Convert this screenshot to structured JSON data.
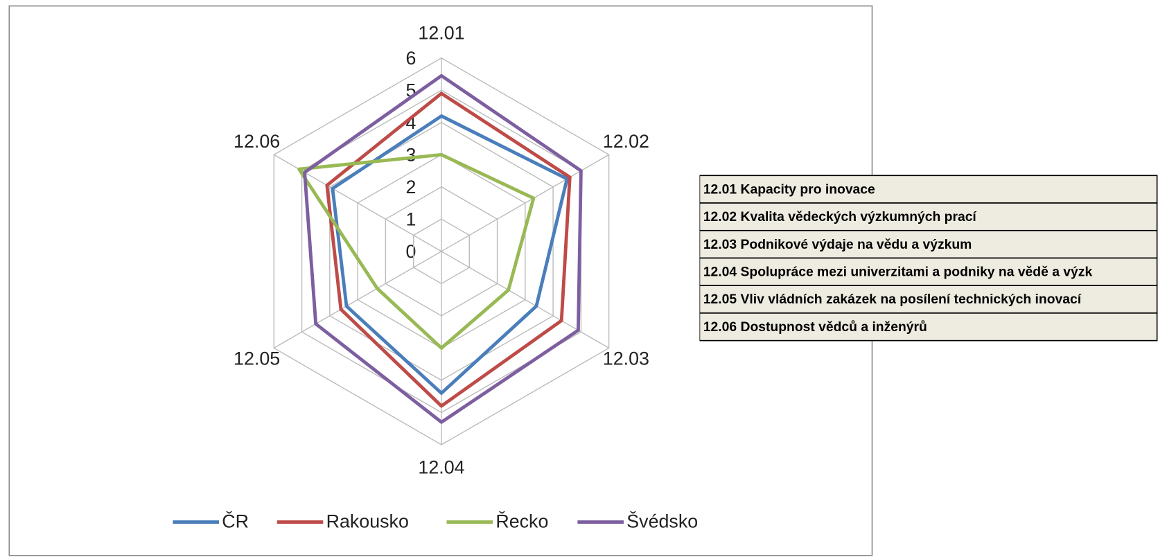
{
  "chart_data": {
    "type": "radar",
    "categories": [
      "12.01",
      "12.02",
      "12.03",
      "12.04",
      "12.05",
      "12.06"
    ],
    "series": [
      {
        "name": "ČR",
        "color": "#4a7ebb",
        "values": [
          4.2,
          4.5,
          3.4,
          4.4,
          3.4,
          3.9
        ]
      },
      {
        "name": "Rakousko",
        "color": "#be4b48",
        "values": [
          4.9,
          4.6,
          4.3,
          4.8,
          3.6,
          4.1
        ]
      },
      {
        "name": "Řecko",
        "color": "#98b954",
        "values": [
          3.0,
          3.3,
          2.4,
          3.0,
          2.3,
          5.1
        ]
      },
      {
        "name": "Švédsko",
        "color": "#7d5fa0",
        "values": [
          5.45,
          5.0,
          4.9,
          5.3,
          4.5,
          4.9
        ]
      }
    ],
    "rlim": [
      0,
      6
    ],
    "rticks": [
      0,
      1,
      2,
      3,
      4,
      5,
      6
    ],
    "grid": true,
    "legend": "bottom",
    "notes_table": [
      "12.01 Kapacity pro inovace",
      "12.02 Kvalita vědeckých výzkumných prací",
      "12.03 Podnikové výdaje na vědu a výzkum",
      "12.04 Spolupráce mezi univerzitami a podniky na vědě a výzk",
      "12.05 Vliv vládních zakázek na posílení technických inovací",
      "12.06 Dostupnost vědců a inženýrů"
    ]
  }
}
